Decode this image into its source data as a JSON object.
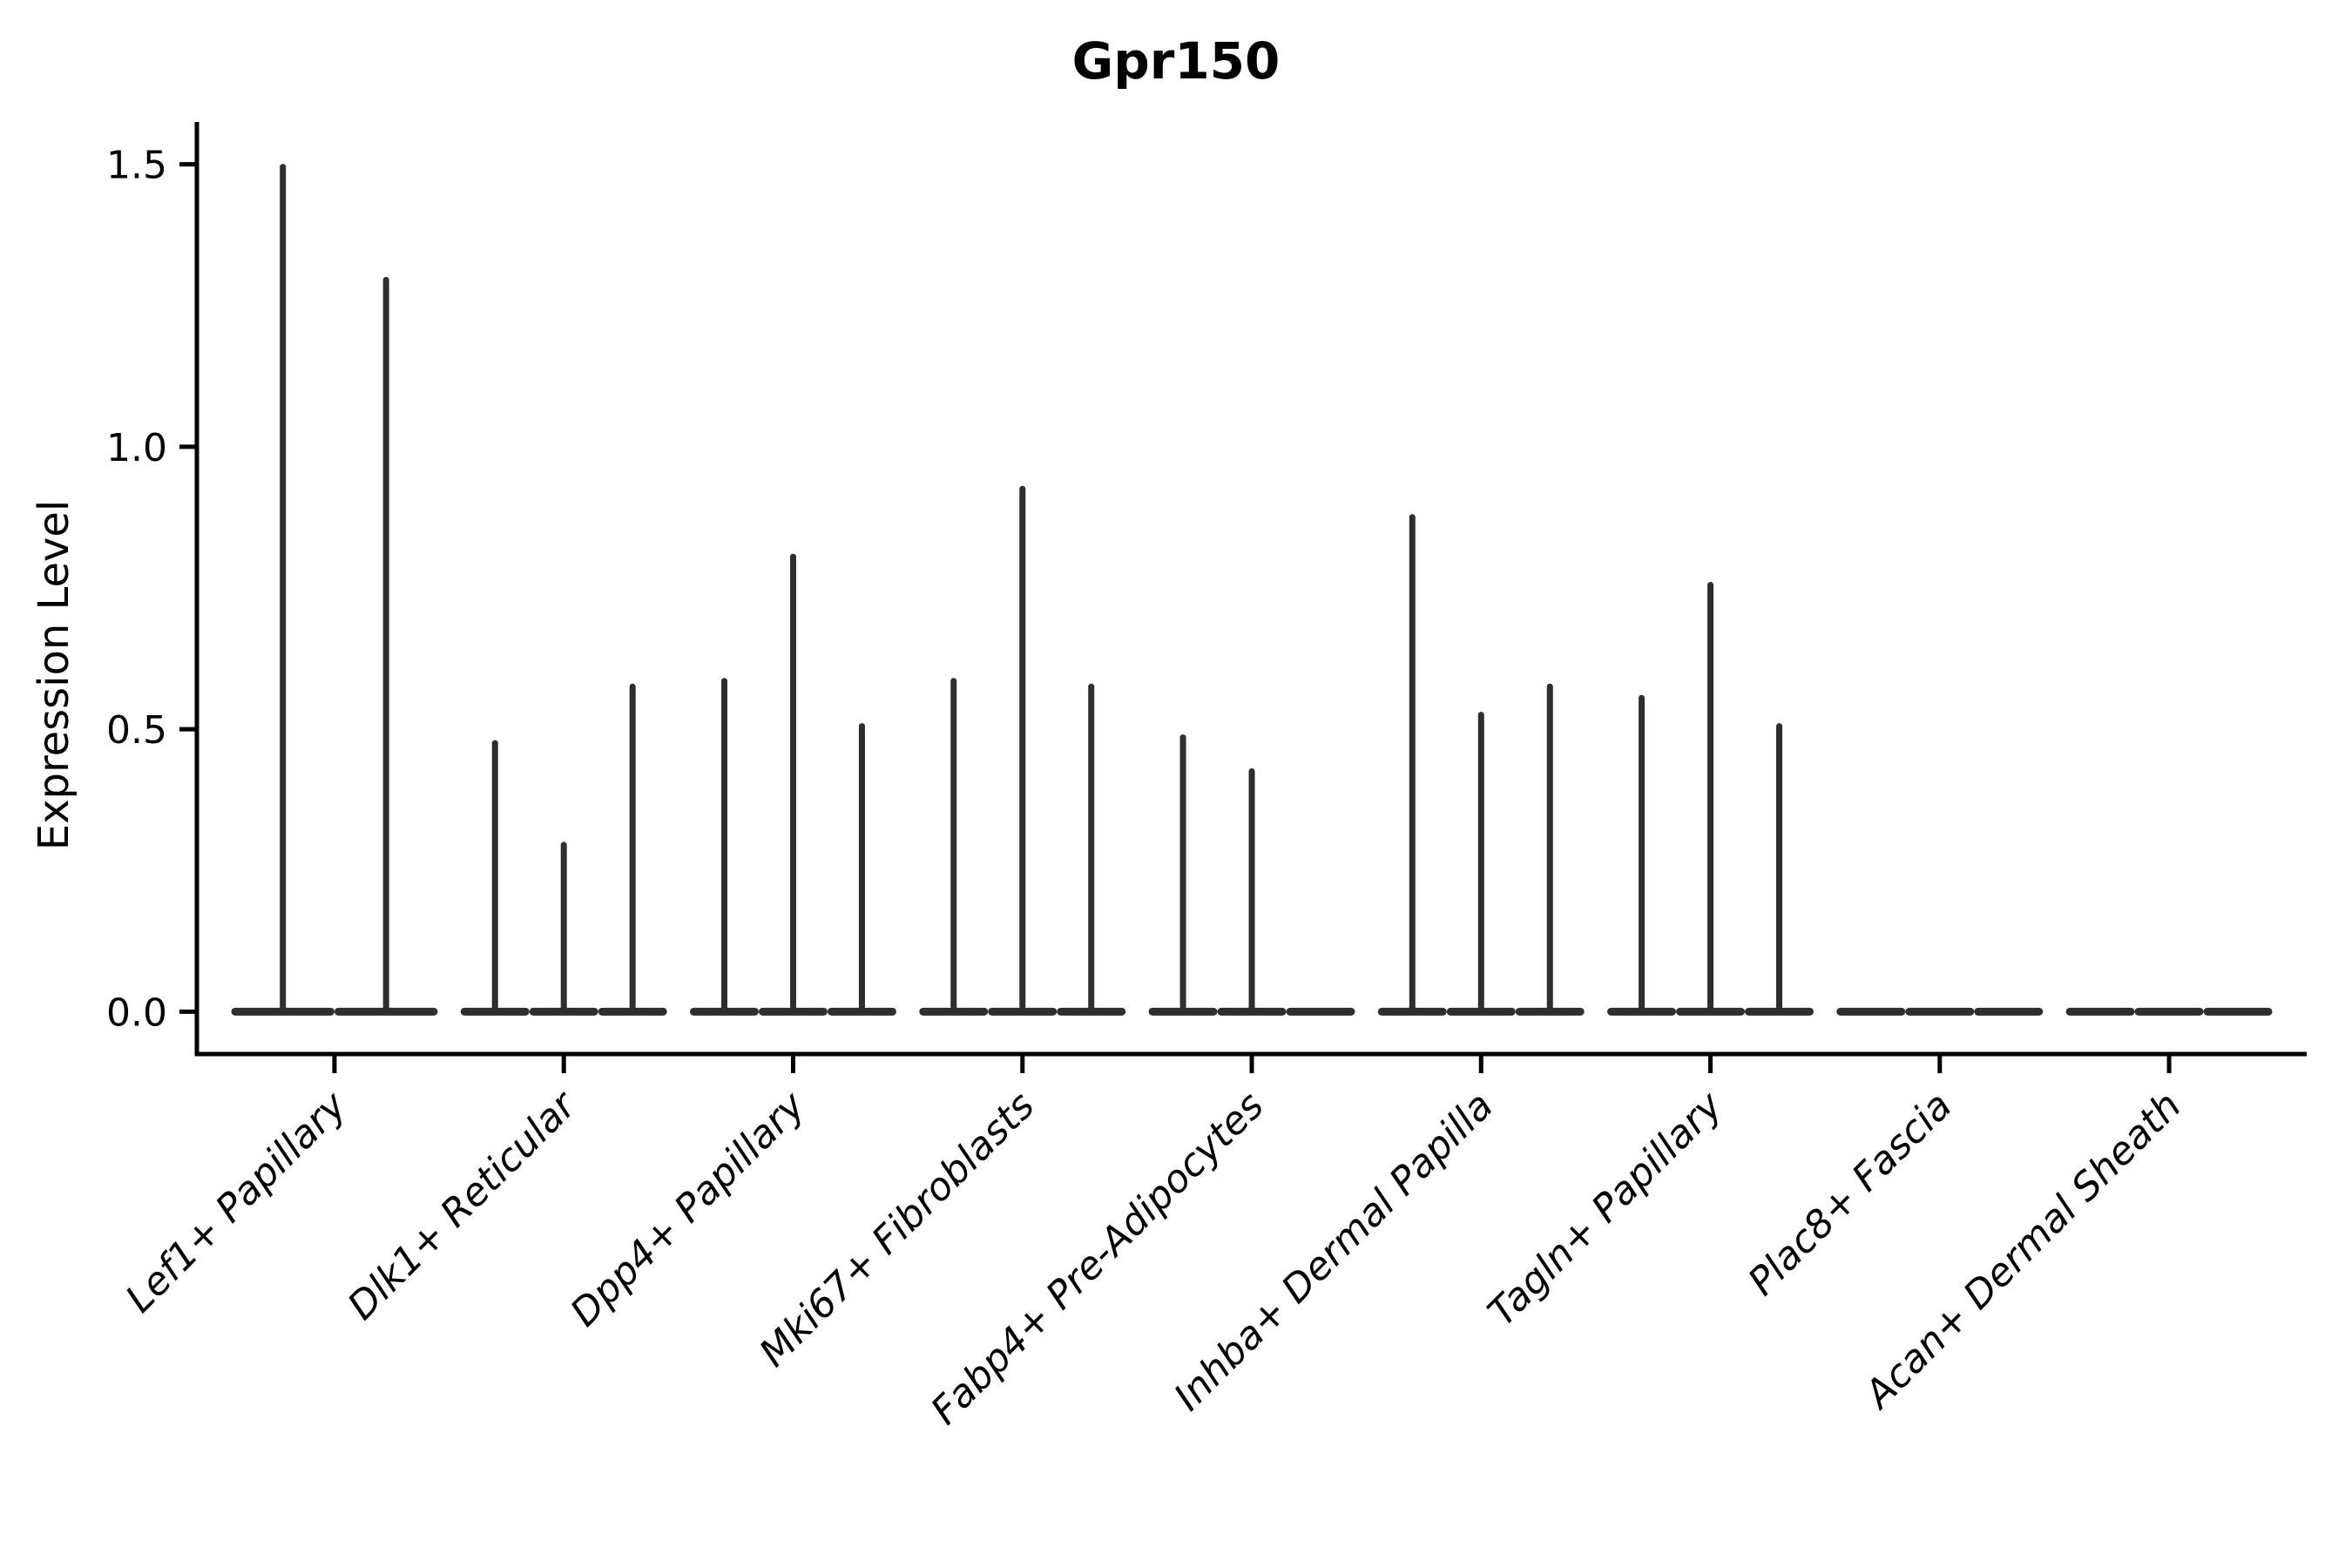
{
  "chart_data": {
    "type": "violin",
    "title": "Gpr150",
    "xlabel": "",
    "ylabel": "Expression Level",
    "ylim": [
      -0.075,
      1.575
    ],
    "grid": false,
    "legend": null,
    "yticks": [
      {
        "label": "0.0",
        "value": 0.0
      },
      {
        "label": "0.5",
        "value": 0.5
      },
      {
        "label": "1.0",
        "value": 1.0
      },
      {
        "label": "1.5",
        "value": 1.5
      }
    ],
    "violin_style": "each violin is an extremely thin spike rising from a wide flat base at expression 0",
    "violins": [
      {
        "category": "Lef1+ Papillary",
        "split_max_values": [
          1.5,
          1.3
        ]
      },
      {
        "category": "Dlk1+ Reticular",
        "split_max_values": [
          0.48,
          0.3,
          0.58
        ]
      },
      {
        "category": "Dpp4+ Papillary",
        "split_max_values": [
          0.59,
          0.81,
          0.51
        ]
      },
      {
        "category": "Mki67+ Fibroblasts",
        "split_max_values": [
          0.59,
          0.93,
          0.58
        ]
      },
      {
        "category": "Fabp4+ Pre-Adipocytes",
        "split_max_values": [
          0.49,
          0.43,
          0.0
        ]
      },
      {
        "category": "Inhba+ Dermal Papilla",
        "split_max_values": [
          0.88,
          0.53,
          0.58
        ]
      },
      {
        "category": "Tagln+ Papillary",
        "split_max_values": [
          0.56,
          0.76,
          0.51
        ]
      },
      {
        "category": "Plac8+ Fascia",
        "split_max_values": [
          0.0,
          0.0,
          0.0
        ]
      },
      {
        "category": "Acan+ Dermal Sheath",
        "split_max_values": [
          0.0,
          0.0,
          0.0
        ]
      }
    ],
    "colors": {
      "violin": "#2e2e2e",
      "axis": "#000000",
      "text": "#000000",
      "background": "#ffffff"
    }
  }
}
